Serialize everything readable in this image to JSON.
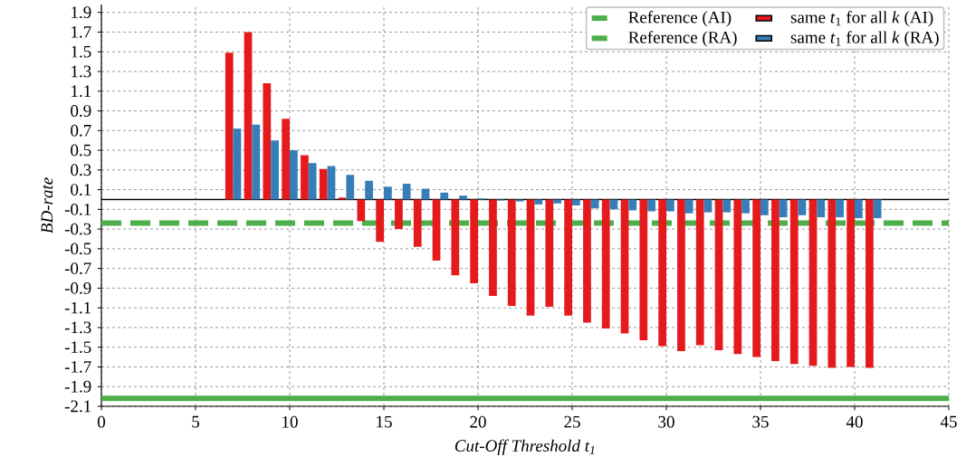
{
  "chart_data": {
    "type": "bar",
    "xlabel": "Cut-Off Threshold t$_{1}$",
    "ylabel": "BD-rate",
    "x": [
      7,
      8,
      9,
      10,
      11,
      12,
      13,
      14,
      15,
      16,
      17,
      18,
      19,
      20,
      21,
      22,
      23,
      24,
      25,
      26,
      27,
      28,
      29,
      30,
      31,
      32,
      33,
      34,
      35,
      36,
      37,
      38,
      39,
      40,
      41
    ],
    "series": [
      {
        "name": "same *t*$_{1}$ for all *k* (AI)",
        "color": "#e41a1c",
        "values": [
          1.49,
          1.7,
          1.18,
          0.82,
          0.45,
          0.31,
          0.02,
          -0.22,
          -0.43,
          -0.3,
          -0.48,
          -0.62,
          -0.77,
          -0.85,
          -0.98,
          -1.08,
          -1.18,
          -1.09,
          -1.18,
          -1.25,
          -1.31,
          -1.36,
          -1.43,
          -1.49,
          -1.54,
          -1.48,
          -1.53,
          -1.57,
          -1.6,
          -1.64,
          -1.67,
          -1.69,
          -1.71,
          -1.7,
          -1.71
        ]
      },
      {
        "name": "same *t*$_{1}$ for all *k* (RA)",
        "color": "#377eb8",
        "values": [
          0.72,
          0.76,
          0.6,
          0.5,
          0.37,
          0.34,
          0.25,
          0.19,
          0.13,
          0.16,
          0.11,
          0.07,
          0.04,
          0.01,
          -0.01,
          -0.02,
          -0.05,
          -0.04,
          -0.06,
          -0.09,
          -0.1,
          -0.11,
          -0.12,
          -0.12,
          -0.14,
          -0.13,
          -0.13,
          -0.14,
          -0.16,
          -0.18,
          -0.16,
          -0.18,
          -0.18,
          -0.19,
          -0.19
        ]
      }
    ],
    "ref_lines": [
      {
        "axis": "y",
        "value": 0,
        "color": "#000000"
      },
      {
        "axis": "y",
        "value": -2.02,
        "label": "Reference (AI)",
        "color": "#4daf4a",
        "line_style": "solid"
      },
      {
        "axis": "y",
        "value": -0.24,
        "label": "Reference (RA)",
        "color": "#4daf4a",
        "line_style": "dashed"
      }
    ],
    "xlim": [
      0,
      45
    ],
    "xticks": [
      0,
      5,
      10,
      15,
      20,
      25,
      30,
      35,
      40,
      45
    ],
    "ylim": [
      -2.1,
      1.98
    ],
    "yticks": [
      -2.1,
      -1.9,
      -1.7,
      -1.5,
      -1.3,
      -1.1,
      -0.9,
      -0.7,
      -0.5,
      -0.3,
      -0.1,
      0.1,
      0.3,
      0.5,
      0.7,
      0.9,
      1.1,
      1.3,
      1.5,
      1.7,
      1.9
    ],
    "grid": true,
    "legend": "top right"
  }
}
